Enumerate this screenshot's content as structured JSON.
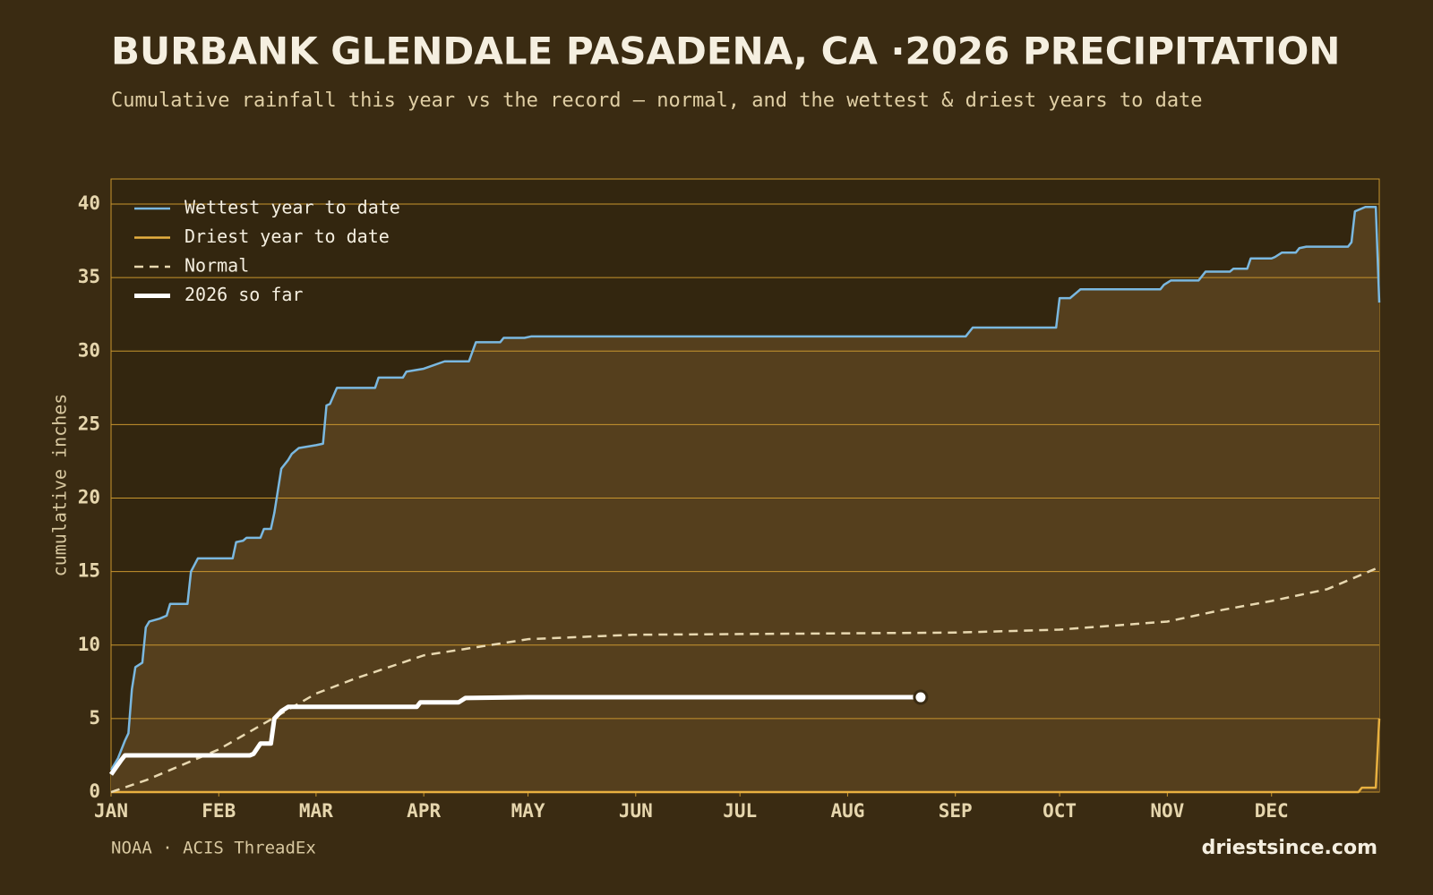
{
  "chart_data": {
    "type": "line",
    "title": "BURBANK GLENDALE PASADENA, CA ·2026 PRECIPITATION",
    "subtitle": "Cumulative rainfall this year vs the record — normal, and the wettest & driest years to date",
    "ylabel": "cumulative inches",
    "source": "NOAA · ACIS ThreadEx",
    "brand": "driestsince.com",
    "xlim": [
      0,
      365
    ],
    "ylim": [
      0,
      40
    ],
    "xticks": [
      {
        "value": 0,
        "label": "JAN"
      },
      {
        "value": 31,
        "label": "FEB"
      },
      {
        "value": 59,
        "label": "MAR"
      },
      {
        "value": 90,
        "label": "APR"
      },
      {
        "value": 120,
        "label": "MAY"
      },
      {
        "value": 151,
        "label": "JUN"
      },
      {
        "value": 181,
        "label": "JUL"
      },
      {
        "value": 212,
        "label": "AUG"
      },
      {
        "value": 243,
        "label": "SEP"
      },
      {
        "value": 273,
        "label": "OCT"
      },
      {
        "value": 304,
        "label": "NOV"
      },
      {
        "value": 334,
        "label": "DEC"
      }
    ],
    "yticks": [
      0,
      5,
      10,
      15,
      20,
      25,
      30,
      35,
      40
    ],
    "grid": true,
    "legend": "upper left",
    "series": [
      {
        "name": "Wettest year to date",
        "color": "#7ab8e0",
        "x": [
          0,
          2,
          4,
          5,
          6,
          7,
          9,
          10,
          11,
          14,
          16,
          17,
          22,
          23,
          25,
          35,
          36,
          38,
          39,
          43,
          44,
          46,
          47,
          49,
          51,
          52,
          54,
          59,
          61,
          62,
          63,
          65,
          76,
          77,
          84,
          85,
          90,
          96,
          103,
          105,
          112,
          113,
          119,
          121,
          246,
          248,
          272,
          273,
          276,
          278,
          279,
          302,
          303,
          305,
          313,
          315,
          322,
          323,
          327,
          328,
          334,
          335,
          337,
          341,
          342,
          344,
          356,
          357,
          358,
          361,
          364,
          365
        ],
        "values": [
          1.5,
          2.3,
          3.5,
          4,
          7,
          8.5,
          8.8,
          11.2,
          11.6,
          11.8,
          12,
          12.8,
          12.8,
          15,
          15.9,
          15.9,
          17,
          17.1,
          17.3,
          17.3,
          17.9,
          17.9,
          19,
          22,
          22.6,
          23,
          23.4,
          23.6,
          23.7,
          26.3,
          26.4,
          27.5,
          27.5,
          28.2,
          28.2,
          28.6,
          28.8,
          29.3,
          29.3,
          30.6,
          30.6,
          30.9,
          30.9,
          31,
          31,
          31.6,
          31.6,
          33.6,
          33.6,
          34,
          34.2,
          34.2,
          34.5,
          34.8,
          34.8,
          35.4,
          35.4,
          35.6,
          35.6,
          36.3,
          36.3,
          36.4,
          36.7,
          36.7,
          37,
          37.1,
          37.1,
          37.4,
          39.5,
          39.8,
          39.8,
          33.3
        ]
      },
      {
        "name": "Driest year to date",
        "color": "#e8b040",
        "x": [
          0,
          359,
          360,
          364,
          365
        ],
        "values": [
          0,
          0,
          0.3,
          0.3,
          5
        ]
      },
      {
        "name": "Normal",
        "color": "#e8d8b0",
        "dashed": true,
        "x": [
          0,
          10,
          31,
          45,
          59,
          70,
          90,
          120,
          150,
          181,
          243,
          273,
          304,
          320,
          334,
          350,
          365
        ],
        "values": [
          0,
          0.8,
          2.9,
          4.8,
          6.7,
          7.7,
          9.3,
          10.4,
          10.7,
          10.75,
          10.85,
          11.05,
          11.6,
          12.4,
          13,
          13.8,
          15.3
        ]
      },
      {
        "name": "2026 so far",
        "color": "#ffffff",
        "width": 5,
        "x": [
          0,
          3,
          4,
          40,
          41,
          43,
          46,
          47,
          49,
          51,
          55,
          88,
          89,
          100,
          102,
          120,
          233
        ],
        "values": [
          1.2,
          2.2,
          2.5,
          2.5,
          2.6,
          3.3,
          3.3,
          5,
          5.5,
          5.8,
          5.8,
          5.8,
          6.1,
          6.1,
          6.4,
          6.45,
          6.45
        ]
      }
    ]
  }
}
